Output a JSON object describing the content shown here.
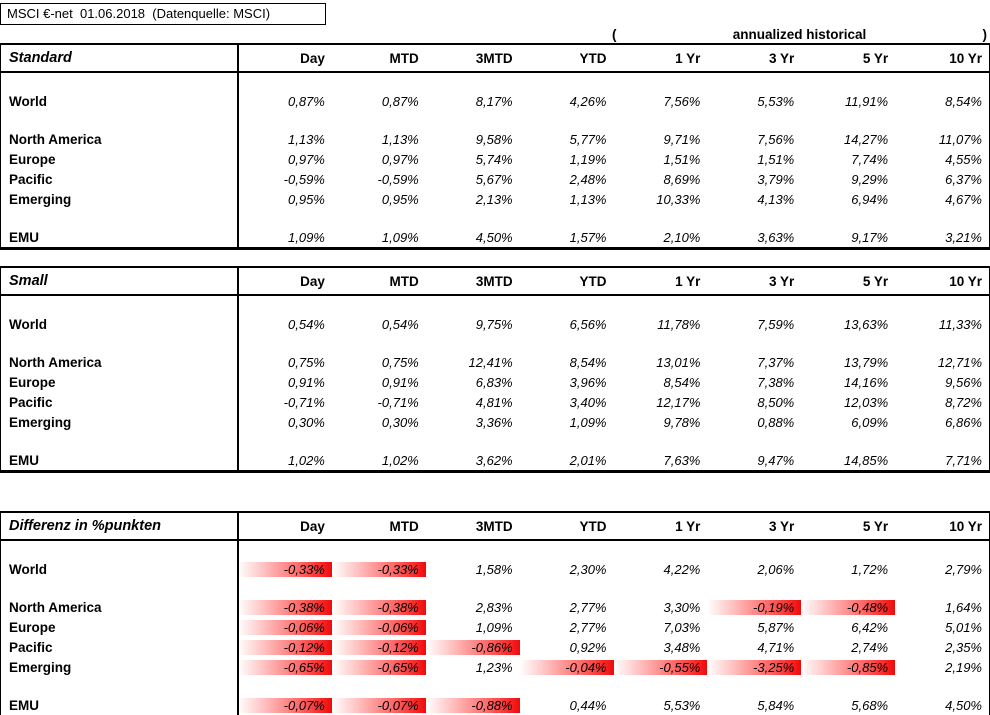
{
  "header": {
    "title": "MSCI €-net  01.06.2018  (Datenquelle: MSCI)",
    "open_paren": "(",
    "annualized_label": "annualized historical",
    "close_paren": ")"
  },
  "columns": [
    "Day",
    "MTD",
    "3MTD",
    "YTD",
    "1 Yr",
    "3 Yr",
    "5 Yr",
    "10 Yr"
  ],
  "colors": {
    "negative_highlight": "#ff0000",
    "border": "#000000",
    "background": "#ffffff"
  },
  "tables": [
    {
      "id": "standard",
      "title": "Standard",
      "highlight_negatives": false,
      "row_groups": [
        [
          {
            "label": "World",
            "values": [
              "0,87%",
              "0,87%",
              "8,17%",
              "4,26%",
              "7,56%",
              "5,53%",
              "11,91%",
              "8,54%"
            ]
          }
        ],
        [
          {
            "label": "North America",
            "values": [
              "1,13%",
              "1,13%",
              "9,58%",
              "5,77%",
              "9,71%",
              "7,56%",
              "14,27%",
              "11,07%"
            ]
          },
          {
            "label": "Europe",
            "values": [
              "0,97%",
              "0,97%",
              "5,74%",
              "1,19%",
              "1,51%",
              "1,51%",
              "7,74%",
              "4,55%"
            ]
          },
          {
            "label": "Pacific",
            "values": [
              "-0,59%",
              "-0,59%",
              "5,67%",
              "2,48%",
              "8,69%",
              "3,79%",
              "9,29%",
              "6,37%"
            ]
          },
          {
            "label": "Emerging",
            "values": [
              "0,95%",
              "0,95%",
              "2,13%",
              "1,13%",
              "10,33%",
              "4,13%",
              "6,94%",
              "4,67%"
            ]
          }
        ],
        [
          {
            "label": "EMU",
            "values": [
              "1,09%",
              "1,09%",
              "4,50%",
              "1,57%",
              "2,10%",
              "3,63%",
              "9,17%",
              "3,21%"
            ]
          }
        ]
      ]
    },
    {
      "id": "small",
      "title": "Small",
      "highlight_negatives": false,
      "row_groups": [
        [
          {
            "label": "World",
            "values": [
              "0,54%",
              "0,54%",
              "9,75%",
              "6,56%",
              "11,78%",
              "7,59%",
              "13,63%",
              "11,33%"
            ]
          }
        ],
        [
          {
            "label": "North America",
            "values": [
              "0,75%",
              "0,75%",
              "12,41%",
              "8,54%",
              "13,01%",
              "7,37%",
              "13,79%",
              "12,71%"
            ]
          },
          {
            "label": "Europe",
            "values": [
              "0,91%",
              "0,91%",
              "6,83%",
              "3,96%",
              "8,54%",
              "7,38%",
              "14,16%",
              "9,56%"
            ]
          },
          {
            "label": "Pacific",
            "values": [
              "-0,71%",
              "-0,71%",
              "4,81%",
              "3,40%",
              "12,17%",
              "8,50%",
              "12,03%",
              "8,72%"
            ]
          },
          {
            "label": "Emerging",
            "values": [
              "0,30%",
              "0,30%",
              "3,36%",
              "1,09%",
              "9,78%",
              "0,88%",
              "6,09%",
              "6,86%"
            ]
          }
        ],
        [
          {
            "label": "EMU",
            "values": [
              "1,02%",
              "1,02%",
              "3,62%",
              "2,01%",
              "7,63%",
              "9,47%",
              "14,85%",
              "7,71%"
            ]
          }
        ]
      ]
    },
    {
      "id": "differenz",
      "title": "Differenz in %punkten",
      "highlight_negatives": true,
      "row_groups": [
        [
          {
            "label": "World",
            "values": [
              "-0,33%",
              "-0,33%",
              "1,58%",
              "2,30%",
              "4,22%",
              "2,06%",
              "1,72%",
              "2,79%"
            ]
          }
        ],
        [
          {
            "label": "North America",
            "values": [
              "-0,38%",
              "-0,38%",
              "2,83%",
              "2,77%",
              "3,30%",
              "-0,19%",
              "-0,48%",
              "1,64%"
            ]
          },
          {
            "label": "Europe",
            "values": [
              "-0,06%",
              "-0,06%",
              "1,09%",
              "2,77%",
              "7,03%",
              "5,87%",
              "6,42%",
              "5,01%"
            ]
          },
          {
            "label": "Pacific",
            "values": [
              "-0,12%",
              "-0,12%",
              "-0,86%",
              "0,92%",
              "3,48%",
              "4,71%",
              "2,74%",
              "2,35%"
            ]
          },
          {
            "label": "Emerging",
            "values": [
              "-0,65%",
              "-0,65%",
              "1,23%",
              "-0,04%",
              "-0,55%",
              "-3,25%",
              "-0,85%",
              "2,19%"
            ]
          }
        ],
        [
          {
            "label": "EMU",
            "values": [
              "-0,07%",
              "-0,07%",
              "-0,88%",
              "0,44%",
              "5,53%",
              "5,84%",
              "5,68%",
              "4,50%"
            ]
          }
        ]
      ]
    }
  ]
}
